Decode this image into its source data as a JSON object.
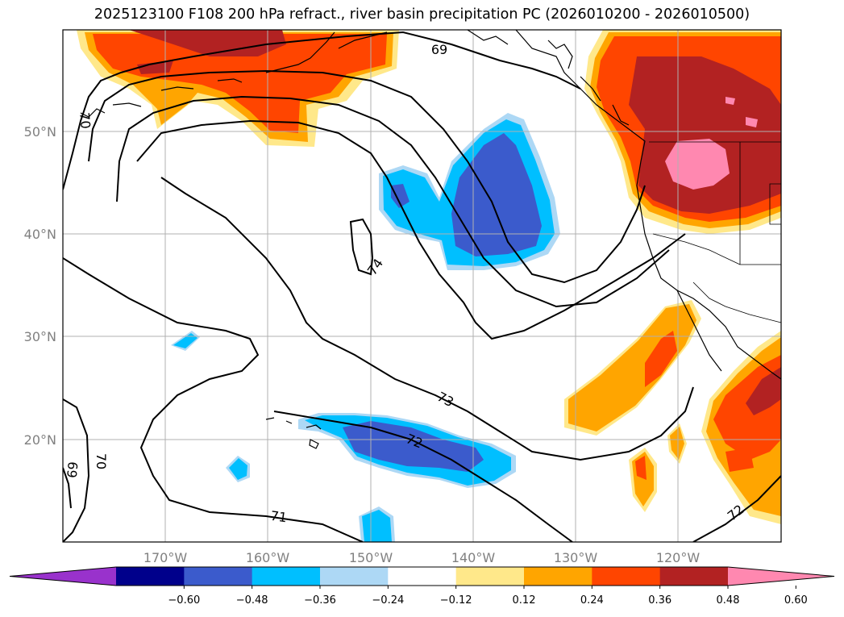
{
  "title": "2025123100 F108 200 hPa refract., river basin precipitation PC (2026010200 - 2026010500)",
  "lat_labels": [
    "50°N",
    "40°N",
    "30°N",
    "20°N"
  ],
  "lon_labels": [
    "170°W",
    "160°W",
    "150°W",
    "140°W",
    "130°W",
    "120°W"
  ],
  "contour_labels": [
    "69",
    "70",
    "74",
    "73",
    "72",
    "70",
    "69",
    "71",
    "72"
  ],
  "colorbar": {
    "colors": [
      "#9932cc",
      "#00008b",
      "#3b5bcc",
      "#00bfff",
      "#add8f5",
      "#ffffff",
      "#ffe88a",
      "#ffa500",
      "#ff4500",
      "#b22222",
      "#ff88b0"
    ],
    "tick_labels": [
      "−0.60",
      "−0.48",
      "−0.36",
      "−0.24",
      "−0.12",
      "0.12",
      "0.24",
      "0.36",
      "0.48",
      "0.60"
    ]
  }
}
